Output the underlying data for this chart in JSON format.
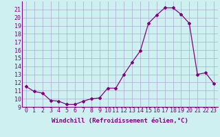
{
  "x": [
    0,
    1,
    2,
    3,
    4,
    5,
    6,
    7,
    8,
    9,
    10,
    11,
    12,
    13,
    14,
    15,
    16,
    17,
    18,
    19,
    20,
    21,
    22,
    23
  ],
  "y": [
    11.5,
    10.9,
    10.7,
    9.8,
    9.7,
    9.3,
    9.3,
    9.7,
    10.0,
    10.1,
    11.3,
    11.3,
    13.0,
    14.5,
    15.9,
    19.3,
    20.3,
    21.2,
    21.2,
    20.4,
    19.3,
    13.0,
    13.2,
    11.9
  ],
  "line_color": "#800080",
  "marker": "D",
  "marker_size": 2.0,
  "bg_color": "#cff0f0",
  "grid_color": "#aaaacc",
  "xlabel": "Windchill (Refroidissement éolien,°C)",
  "ylim": [
    9,
    22
  ],
  "xlim": [
    -0.5,
    23.5
  ],
  "yticks": [
    9,
    10,
    11,
    12,
    13,
    14,
    15,
    16,
    17,
    18,
    19,
    20,
    21
  ],
  "xtick_labels": [
    "0",
    "1",
    "2",
    "3",
    "4",
    "5",
    "6",
    "7",
    "8",
    "9",
    "10",
    "11",
    "12",
    "13",
    "14",
    "15",
    "16",
    "17",
    "18",
    "19",
    "20",
    "21",
    "22",
    "23"
  ],
  "label_fontsize": 6.5,
  "tick_fontsize": 6.0
}
